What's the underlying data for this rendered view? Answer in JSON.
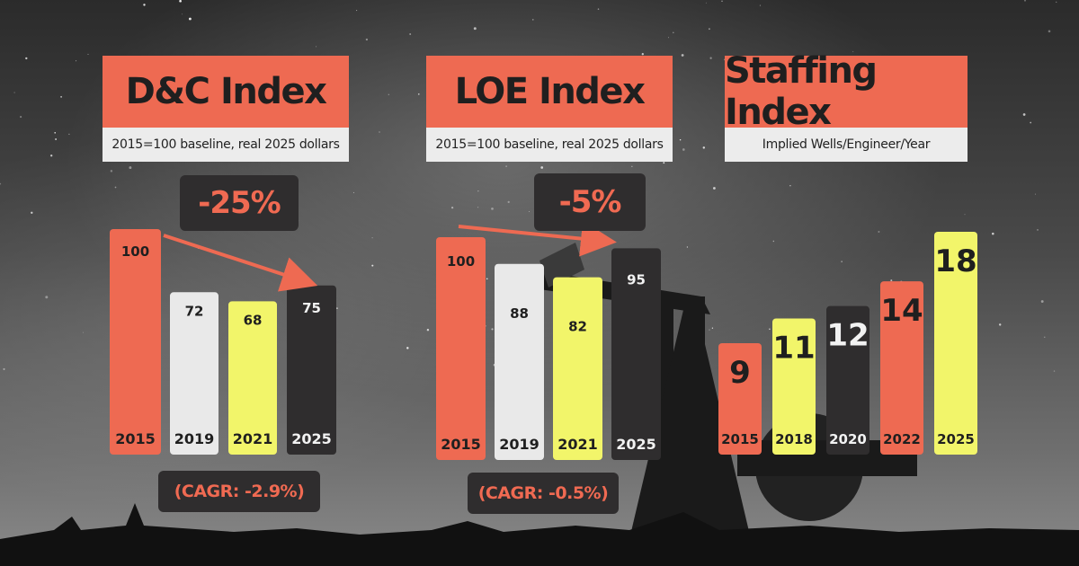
{
  "colors": {
    "coral": "#ee6a52",
    "light_gray": "#e9e9e9",
    "yellow": "#f2f56a",
    "dark": "#2f2d2e",
    "callout_text": "#f06a52"
  },
  "panels": {
    "dc": {
      "title": "D&C Index",
      "subtitle": "2015=100 baseline, real 2025 dollars",
      "change": "-25%",
      "cagr": "(CAGR: -2.9%)"
    },
    "loe": {
      "title": "LOE Index",
      "subtitle": "2015=100 baseline, real 2025 dollars",
      "change": "-5%",
      "cagr": "(CAGR: -0.5%)"
    },
    "staffing": {
      "title": "Staffing Index",
      "subtitle": "Implied Wells/Engineer/Year"
    }
  },
  "chart_data": [
    {
      "type": "bar",
      "title": "D&C Index",
      "subtitle": "2015=100 baseline, real 2025 dollars",
      "categories": [
        "2015",
        "2019",
        "2021",
        "2025"
      ],
      "values": [
        100,
        72,
        68,
        75
      ],
      "bar_colors": [
        "coral",
        "light_gray",
        "yellow",
        "dark"
      ],
      "annotations": [
        "-25%",
        "(CAGR: -2.9%)"
      ],
      "grid": false
    },
    {
      "type": "bar",
      "title": "LOE Index",
      "subtitle": "2015=100 baseline, real 2025 dollars",
      "categories": [
        "2015",
        "2019",
        "2021",
        "2025"
      ],
      "values": [
        100,
        88,
        82,
        95
      ],
      "bar_colors": [
        "coral",
        "light_gray",
        "yellow",
        "dark"
      ],
      "annotations": [
        "-5%",
        "(CAGR: -0.5%)"
      ],
      "grid": false
    },
    {
      "type": "bar",
      "title": "Staffing Index",
      "subtitle": "Implied Wells/Engineer/Year",
      "categories": [
        "2015",
        "2018",
        "2020",
        "2022",
        "2025"
      ],
      "values": [
        9,
        11,
        12,
        14,
        18
      ],
      "bar_colors": [
        "coral",
        "yellow",
        "dark",
        "coral",
        "yellow"
      ],
      "grid": false
    }
  ]
}
